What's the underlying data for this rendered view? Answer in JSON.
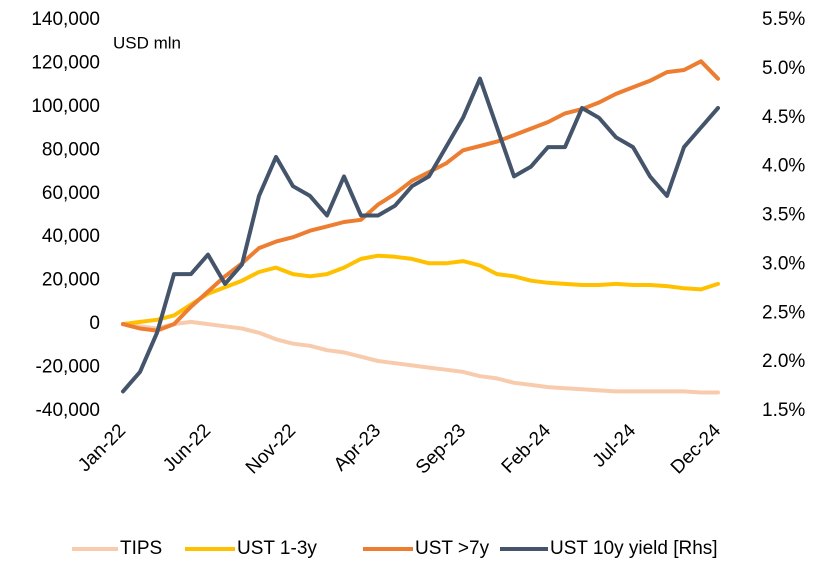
{
  "chart_data": {
    "type": "line",
    "annotation": "USD mln",
    "categories": [
      "Jan-22",
      null,
      null,
      null,
      null,
      "Jun-22",
      null,
      null,
      null,
      null,
      "Nov-22",
      null,
      null,
      null,
      null,
      "Apr-23",
      null,
      null,
      null,
      null,
      "Sep-23",
      null,
      null,
      null,
      null,
      "Feb-24",
      null,
      null,
      null,
      null,
      "Jul-24",
      null,
      null,
      null,
      null,
      "Dec-24"
    ],
    "series": [
      {
        "name": "TIPS",
        "color": "#f8cbad",
        "values": [
          0,
          -1000,
          -2000,
          0,
          1000,
          0,
          -1000,
          -2000,
          -4000,
          -7000,
          -9000,
          -10000,
          -12000,
          -13000,
          -15000,
          -17000,
          -18000,
          -19000,
          -20000,
          -21000,
          -22000,
          -24000,
          -25000,
          -27000,
          -28000,
          -29000,
          -29500,
          -30000,
          -30500,
          -31000,
          -31000,
          -31000,
          -31000,
          -31000,
          -31500,
          -31500
        ]
      },
      {
        "name": "UST 1-3y",
        "color": "#ffc000",
        "values": [
          0,
          1000,
          2000,
          4000,
          9000,
          14000,
          17000,
          20000,
          24000,
          26000,
          23000,
          22000,
          23000,
          26000,
          30000,
          31500,
          31000,
          30000,
          28000,
          28000,
          29000,
          27000,
          23000,
          22000,
          20000,
          19000,
          18500,
          18000,
          18000,
          18500,
          18000,
          18000,
          17500,
          16500,
          16000,
          18500
        ]
      },
      {
        "name": "UST >7y",
        "color": "#ed7d31",
        "values": [
          0,
          -2000,
          -3000,
          0,
          8000,
          15000,
          22000,
          28000,
          35000,
          38000,
          40000,
          43000,
          45000,
          47000,
          48000,
          55000,
          60000,
          66000,
          70000,
          74000,
          80000,
          82000,
          84000,
          87000,
          90000,
          93000,
          97000,
          99000,
          102000,
          106000,
          109000,
          112000,
          116000,
          117000,
          121000,
          113000
        ]
      },
      {
        "name": "UST 10y yield [Rhs]",
        "color": "#44546a",
        "axis": "y2",
        "values": [
          1.7,
          1.9,
          2.3,
          2.9,
          2.9,
          3.1,
          2.8,
          3.0,
          3.7,
          4.1,
          3.8,
          3.7,
          3.5,
          3.9,
          3.5,
          3.5,
          3.6,
          3.8,
          3.9,
          4.2,
          4.5,
          4.9,
          4.4,
          3.9,
          4.0,
          4.2,
          4.2,
          4.6,
          4.5,
          4.3,
          4.2,
          3.9,
          3.7,
          4.2,
          4.4,
          4.6
        ]
      }
    ],
    "ylim": [
      -40000,
      140000
    ],
    "yticks": [
      {
        "value": -40000,
        "label": "-40,000"
      },
      {
        "value": -20000,
        "label": "-20,000"
      },
      0,
      {
        "value": 20000,
        "label": "20,000"
      },
      {
        "value": 40000,
        "label": "40,000"
      },
      {
        "value": 60000,
        "label": "60,000"
      },
      {
        "value": 80000,
        "label": "80,000"
      },
      {
        "value": 100000,
        "label": "100,000"
      },
      {
        "value": 120000,
        "label": "120,000"
      },
      {
        "value": 140000,
        "label": "140,000"
      }
    ],
    "y2lim": [
      1.5,
      5.5
    ],
    "y2ticks": [
      {
        "value": 1.5,
        "label": "1.5%"
      },
      {
        "value": 2.0,
        "label": "2.0%"
      },
      {
        "value": 2.5,
        "label": "2.5%"
      },
      {
        "value": 3.0,
        "label": "3.0%"
      },
      {
        "value": 3.5,
        "label": "3.5%"
      },
      {
        "value": 4.0,
        "label": "4.0%"
      },
      {
        "value": 4.5,
        "label": "4.5%"
      },
      {
        "value": 5.0,
        "label": "5.0%"
      },
      {
        "value": 5.5,
        "label": "5.5%"
      }
    ],
    "grid": false,
    "legend": "bottom"
  }
}
